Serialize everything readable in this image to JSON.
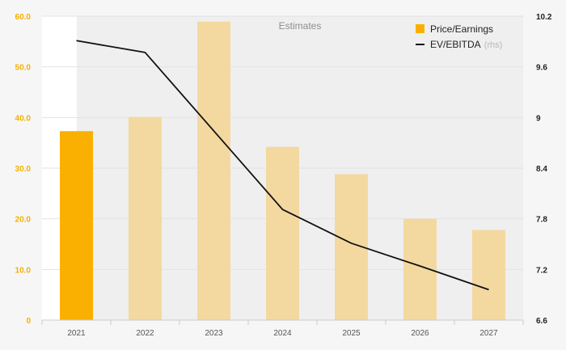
{
  "chart_data": {
    "type": "bar+line",
    "categories": [
      "2021",
      "2022",
      "2023",
      "2024",
      "2025",
      "2026",
      "2027"
    ],
    "series": [
      {
        "name": "Price/Earnings",
        "type": "bar",
        "axis": "left",
        "values": [
          37.3,
          40.1,
          58.9,
          34.2,
          28.8,
          20.0,
          17.8
        ],
        "estimate_from_index": 1
      },
      {
        "name": "EV/EBITDA",
        "type": "line",
        "axis": "right",
        "values": [
          9.91,
          9.77,
          8.84,
          7.91,
          7.51,
          7.24,
          6.96
        ]
      }
    ],
    "y_left": {
      "ylim": [
        0,
        60
      ],
      "ticks": [
        "0",
        "10.0",
        "20.0",
        "30.0",
        "40.0",
        "50.0",
        "60.0"
      ]
    },
    "y_right": {
      "ylim": [
        6.6,
        10.2
      ],
      "ticks": [
        "6.6",
        "7.2",
        "7.8",
        "8.4",
        "9",
        "9.6",
        "10.2"
      ]
    },
    "estimates_label": "Estimates",
    "legend": {
      "position": "top-right",
      "items": [
        {
          "label": "Price/Earnings",
          "suffix": ""
        },
        {
          "label": "EV/EBITDA",
          "suffix": "(rhs)"
        }
      ]
    },
    "colors": {
      "bar_actual": "#f9b000",
      "bar_estimate": "#f3d9a0",
      "line": "#111111",
      "estimate_shade": "#efefef",
      "grid": "#e2e2e2",
      "background_outer": "#f6f6f6"
    }
  }
}
